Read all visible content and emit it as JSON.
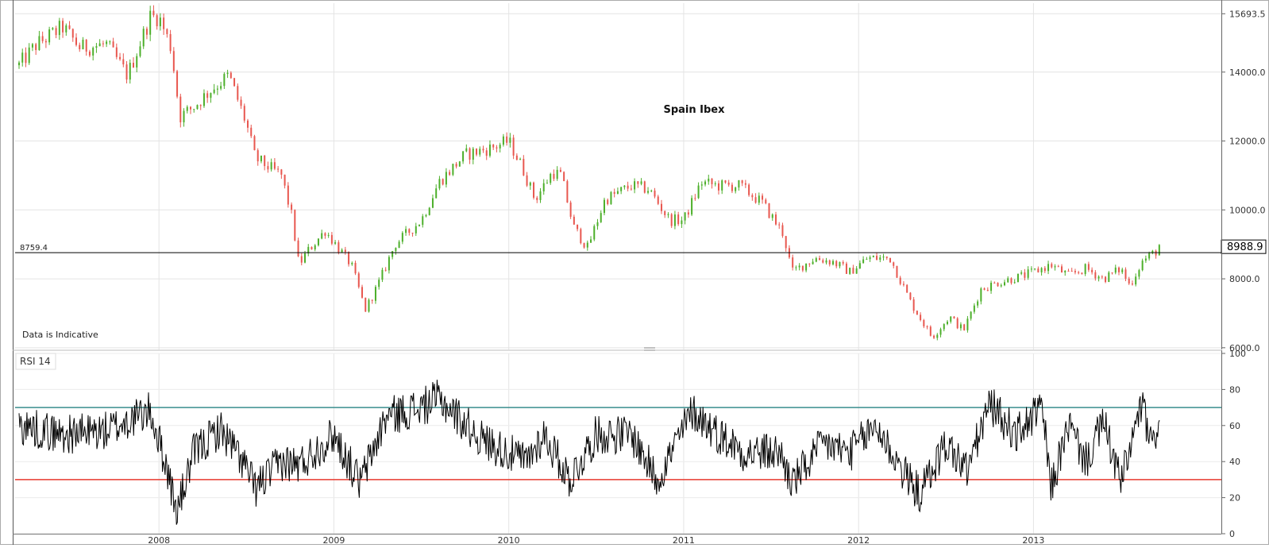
{
  "chart_data": [
    {
      "type": "candlestick",
      "title": "Spain Ibex",
      "note": "Data is Indicative",
      "y_ticks": [
        "15693.5",
        "14000.0",
        "12000.0",
        "10000.0",
        "8000.0",
        "6000.0"
      ],
      "y_tick_values": [
        15693.5,
        14000,
        12000,
        10000,
        8000,
        6000
      ],
      "ylim": [
        5950,
        16000
      ],
      "reference_line": {
        "value": 8759.4,
        "label": "8759.4"
      },
      "last_value": {
        "value": 8988.9,
        "label": "8988.9"
      },
      "x_ticks": [
        "2008",
        "2009",
        "2010",
        "2011",
        "2012",
        "2013"
      ],
      "up_color": "#4caf2a",
      "down_color": "#e8574f",
      "grid": true,
      "weekly_close_anchors": [
        {
          "t": 2007.2,
          "v": 14200
        },
        {
          "t": 2007.3,
          "v": 14800
        },
        {
          "t": 2007.45,
          "v": 15300
        },
        {
          "t": 2007.55,
          "v": 14700
        },
        {
          "t": 2007.7,
          "v": 14800
        },
        {
          "t": 2007.82,
          "v": 13900
        },
        {
          "t": 2007.95,
          "v": 15600
        },
        {
          "t": 2008.0,
          "v": 15600
        },
        {
          "t": 2008.07,
          "v": 14700
        },
        {
          "t": 2008.12,
          "v": 12700
        },
        {
          "t": 2008.2,
          "v": 13000
        },
        {
          "t": 2008.3,
          "v": 13500
        },
        {
          "t": 2008.4,
          "v": 13900
        },
        {
          "t": 2008.5,
          "v": 12500
        },
        {
          "t": 2008.55,
          "v": 11500
        },
        {
          "t": 2008.7,
          "v": 11000
        },
        {
          "t": 2008.76,
          "v": 9800
        },
        {
          "t": 2008.8,
          "v": 8400
        },
        {
          "t": 2008.85,
          "v": 8800
        },
        {
          "t": 2008.95,
          "v": 9400
        },
        {
          "t": 2009.1,
          "v": 8400
        },
        {
          "t": 2009.18,
          "v": 7100
        },
        {
          "t": 2009.25,
          "v": 7800
        },
        {
          "t": 2009.35,
          "v": 9000
        },
        {
          "t": 2009.5,
          "v": 9700
        },
        {
          "t": 2009.6,
          "v": 10800
        },
        {
          "t": 2009.75,
          "v": 11600
        },
        {
          "t": 2009.9,
          "v": 11800
        },
        {
          "t": 2010.0,
          "v": 12000
        },
        {
          "t": 2010.08,
          "v": 11200
        },
        {
          "t": 2010.15,
          "v": 10300
        },
        {
          "t": 2010.25,
          "v": 11100
        },
        {
          "t": 2010.3,
          "v": 11000
        },
        {
          "t": 2010.37,
          "v": 9500
        },
        {
          "t": 2010.45,
          "v": 8900
        },
        {
          "t": 2010.55,
          "v": 10300
        },
        {
          "t": 2010.7,
          "v": 10700
        },
        {
          "t": 2010.8,
          "v": 10600
        },
        {
          "t": 2010.92,
          "v": 9700
        },
        {
          "t": 2011.0,
          "v": 9700
        },
        {
          "t": 2011.1,
          "v": 10800
        },
        {
          "t": 2011.2,
          "v": 10700
        },
        {
          "t": 2011.32,
          "v": 10700
        },
        {
          "t": 2011.45,
          "v": 10200
        },
        {
          "t": 2011.57,
          "v": 9300
        },
        {
          "t": 2011.62,
          "v": 8200
        },
        {
          "t": 2011.75,
          "v": 8600
        },
        {
          "t": 2011.85,
          "v": 8500
        },
        {
          "t": 2011.95,
          "v": 8200
        },
        {
          "t": 2012.05,
          "v": 8600
        },
        {
          "t": 2012.18,
          "v": 8600
        },
        {
          "t": 2012.3,
          "v": 7300
        },
        {
          "t": 2012.42,
          "v": 6300
        },
        {
          "t": 2012.52,
          "v": 6900
        },
        {
          "t": 2012.6,
          "v": 6500
        },
        {
          "t": 2012.7,
          "v": 7700
        },
        {
          "t": 2012.8,
          "v": 7900
        },
        {
          "t": 2012.95,
          "v": 8100
        },
        {
          "t": 2013.1,
          "v": 8400
        },
        {
          "t": 2013.2,
          "v": 8100
        },
        {
          "t": 2013.3,
          "v": 8300
        },
        {
          "t": 2013.4,
          "v": 8000
        },
        {
          "t": 2013.5,
          "v": 8300
        },
        {
          "t": 2013.55,
          "v": 7800
        },
        {
          "t": 2013.62,
          "v": 8500
        },
        {
          "t": 2013.7,
          "v": 8800
        },
        {
          "t": 2013.72,
          "v": 8989
        }
      ]
    },
    {
      "type": "line",
      "title": "RSI 14",
      "y_ticks": [
        "100",
        "80",
        "60",
        "40",
        "20",
        "0"
      ],
      "y_tick_values": [
        100,
        80,
        60,
        40,
        20,
        0
      ],
      "ylim": [
        0,
        100
      ],
      "overbought": {
        "value": 70,
        "color": "#3a8e8e"
      },
      "oversold": {
        "value": 30,
        "color": "#e83a2f"
      },
      "line_color": "#000000",
      "x_ticks": [
        "2008",
        "2009",
        "2010",
        "2011",
        "2012",
        "2013"
      ],
      "anchors": [
        {
          "t": 2007.2,
          "v": 60
        },
        {
          "t": 2007.45,
          "v": 55
        },
        {
          "t": 2007.7,
          "v": 57
        },
        {
          "t": 2007.95,
          "v": 68
        },
        {
          "t": 2008.05,
          "v": 35
        },
        {
          "t": 2008.1,
          "v": 11
        },
        {
          "t": 2008.2,
          "v": 45
        },
        {
          "t": 2008.35,
          "v": 58
        },
        {
          "t": 2008.48,
          "v": 40
        },
        {
          "t": 2008.55,
          "v": 25
        },
        {
          "t": 2008.7,
          "v": 40
        },
        {
          "t": 2008.8,
          "v": 38
        },
        {
          "t": 2009.0,
          "v": 55
        },
        {
          "t": 2009.15,
          "v": 28
        },
        {
          "t": 2009.3,
          "v": 65
        },
        {
          "t": 2009.5,
          "v": 70
        },
        {
          "t": 2009.6,
          "v": 75
        },
        {
          "t": 2009.85,
          "v": 52
        },
        {
          "t": 2010.1,
          "v": 40
        },
        {
          "t": 2010.2,
          "v": 55
        },
        {
          "t": 2010.35,
          "v": 30
        },
        {
          "t": 2010.5,
          "v": 55
        },
        {
          "t": 2010.7,
          "v": 55
        },
        {
          "t": 2010.85,
          "v": 30
        },
        {
          "t": 2011.05,
          "v": 68
        },
        {
          "t": 2011.2,
          "v": 55
        },
        {
          "t": 2011.35,
          "v": 45
        },
        {
          "t": 2011.55,
          "v": 45
        },
        {
          "t": 2011.62,
          "v": 28
        },
        {
          "t": 2011.8,
          "v": 50
        },
        {
          "t": 2011.95,
          "v": 45
        },
        {
          "t": 2012.1,
          "v": 60
        },
        {
          "t": 2012.25,
          "v": 35
        },
        {
          "t": 2012.35,
          "v": 22
        },
        {
          "t": 2012.5,
          "v": 50
        },
        {
          "t": 2012.62,
          "v": 35
        },
        {
          "t": 2012.75,
          "v": 72
        },
        {
          "t": 2012.9,
          "v": 55
        },
        {
          "t": 2013.05,
          "v": 70
        },
        {
          "t": 2013.1,
          "v": 25
        },
        {
          "t": 2013.2,
          "v": 60
        },
        {
          "t": 2013.3,
          "v": 40
        },
        {
          "t": 2013.4,
          "v": 62
        },
        {
          "t": 2013.5,
          "v": 28
        },
        {
          "t": 2013.62,
          "v": 72
        },
        {
          "t": 2013.68,
          "v": 45
        },
        {
          "t": 2013.72,
          "v": 68
        }
      ]
    }
  ]
}
